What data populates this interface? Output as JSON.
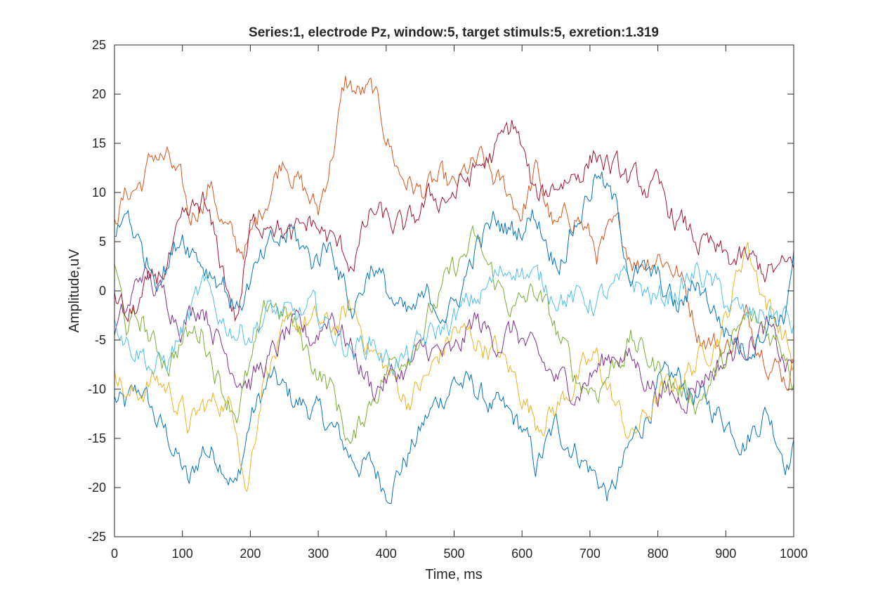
{
  "chart_data": {
    "type": "line",
    "title": "Series:1, electrode Pz, window:5, target stimuls:5, exretion:1.319",
    "xlabel": "Time, ms",
    "ylabel": "Amplitude,uV",
    "xlim": [
      0,
      1000
    ],
    "ylim": [
      -25,
      25
    ],
    "xticks": [
      0,
      100,
      200,
      300,
      400,
      500,
      600,
      700,
      800,
      900,
      1000
    ],
    "yticks": [
      -25,
      -20,
      -15,
      -10,
      -5,
      0,
      5,
      10,
      15,
      20,
      25
    ],
    "grid": false,
    "legend": "none",
    "series": [
      {
        "color": "#0072BD",
        "x": [
          0,
          15,
          40,
          60,
          80,
          100,
          110,
          130,
          160,
          180,
          200,
          230,
          260,
          290,
          320,
          350,
          380,
          400,
          430,
          460,
          500,
          530,
          560,
          580,
          600,
          620,
          650,
          680,
          710,
          730,
          760,
          800,
          830,
          860,
          900,
          930,
          960,
          990,
          1000
        ],
        "y": [
          -11,
          -12,
          -10,
          -13,
          -15,
          -18,
          -20,
          -16,
          -17,
          -20,
          -13,
          -9,
          -11,
          -12,
          -14,
          -17,
          -18,
          -20,
          -17,
          -13,
          -9,
          -10,
          -12,
          -13,
          -14,
          -18,
          -14,
          -16,
          -19,
          -21,
          -16,
          -10,
          -9,
          -11,
          -13,
          -15,
          -12,
          -17,
          -16
        ]
      },
      {
        "color": "#D95319",
        "x": [
          0,
          20,
          40,
          60,
          80,
          100,
          110,
          140,
          160,
          180,
          200,
          220,
          250,
          280,
          300,
          320,
          340,
          360,
          380,
          400,
          420,
          450,
          480,
          500,
          520,
          540,
          560,
          580,
          600,
          620,
          650,
          680,
          710,
          740,
          770,
          800,
          830,
          860,
          900,
          930,
          960,
          990,
          1000
        ],
        "y": [
          8,
          10,
          11,
          14,
          13,
          10,
          7,
          11,
          7,
          4,
          5,
          9,
          14,
          10,
          8,
          14,
          21,
          20,
          20,
          16,
          12,
          10,
          11,
          10,
          12,
          13,
          11,
          10,
          8,
          12,
          6,
          8,
          4,
          6,
          3,
          4,
          2,
          -4,
          -6,
          -3,
          -6,
          -9,
          -7
        ]
      },
      {
        "color": "#EDB120",
        "x": [
          0,
          20,
          40,
          60,
          80,
          100,
          110,
          130,
          160,
          180,
          195,
          220,
          250,
          280,
          320,
          350,
          380,
          400,
          430,
          460,
          500,
          530,
          560,
          590,
          620,
          650,
          680,
          710,
          740,
          760,
          800,
          830,
          860,
          900,
          930,
          960,
          990,
          1000
        ],
        "y": [
          -7,
          -11,
          -10,
          -9,
          -10,
          -12,
          -14,
          -12,
          -11,
          -13,
          -20,
          -8,
          -5,
          -3,
          -4,
          -2,
          -6,
          -8,
          -11,
          -9,
          -4,
          -5,
          -6,
          -9,
          -13,
          -12,
          -9,
          -7,
          -12,
          -15,
          -11,
          -9,
          -7,
          -3,
          5,
          -1,
          -5,
          -8
        ]
      },
      {
        "color": "#7E2F8E",
        "x": [
          0,
          20,
          40,
          60,
          80,
          100,
          130,
          160,
          180,
          200,
          230,
          260,
          290,
          320,
          350,
          380,
          400,
          430,
          460,
          500,
          530,
          560,
          590,
          620,
          650,
          680,
          710,
          740,
          760,
          800,
          830,
          860,
          900,
          930,
          960,
          990,
          1000
        ],
        "y": [
          -4,
          -2,
          2,
          0,
          -1,
          -3,
          -1,
          -6,
          -8,
          -9,
          -7,
          -4,
          -5,
          -2,
          -6,
          -10,
          -9,
          -8,
          -6,
          -7,
          -3,
          -5,
          -4,
          -7,
          -9,
          -10,
          -8,
          -6,
          -7,
          -10,
          -11,
          -9,
          -7,
          -5,
          -4,
          -8,
          -7
        ]
      },
      {
        "color": "#77AC30",
        "x": [
          0,
          20,
          40,
          60,
          80,
          100,
          130,
          160,
          180,
          200,
          230,
          260,
          290,
          320,
          350,
          370,
          400,
          430,
          460,
          500,
          530,
          560,
          590,
          620,
          650,
          680,
          710,
          740,
          760,
          800,
          830,
          860,
          900,
          930,
          960,
          990,
          1000
        ],
        "y": [
          2,
          -4,
          -3,
          -6,
          -7,
          -5,
          -4,
          -10,
          -12,
          -8,
          -1,
          -3,
          -7,
          -10,
          -16,
          -12,
          -8,
          -6,
          -3,
          2,
          5,
          1,
          -2,
          0,
          -4,
          -9,
          -10,
          -7,
          -5,
          -8,
          -10,
          -11,
          -7,
          -3,
          -4,
          -6,
          -9
        ]
      },
      {
        "color": "#4DBEEE",
        "x": [
          0,
          20,
          40,
          60,
          80,
          100,
          130,
          160,
          180,
          200,
          230,
          260,
          290,
          320,
          350,
          380,
          400,
          430,
          460,
          500,
          530,
          560,
          590,
          620,
          650,
          680,
          710,
          740,
          760,
          800,
          830,
          860,
          900,
          930,
          960,
          990,
          1000
        ],
        "y": [
          -2,
          -5,
          -6,
          -8,
          -7,
          -4,
          0,
          -3,
          -4,
          -4,
          -2,
          -3,
          -2,
          -4,
          -6,
          -5,
          -7,
          -7,
          -5,
          -3,
          -1,
          1,
          3,
          1,
          0,
          -1,
          -1,
          0,
          1,
          -1,
          0,
          2,
          -1,
          -3,
          -2,
          -3,
          -4
        ]
      },
      {
        "color": "#A2142F",
        "x": [
          0,
          20,
          40,
          60,
          80,
          100,
          130,
          160,
          180,
          200,
          230,
          260,
          290,
          320,
          350,
          380,
          400,
          430,
          460,
          500,
          530,
          560,
          590,
          620,
          650,
          680,
          710,
          740,
          760,
          800,
          830,
          860,
          900,
          930,
          960,
          990,
          1000
        ],
        "y": [
          0,
          -3,
          -1,
          1,
          3,
          6,
          9,
          2,
          -3,
          6,
          8,
          5,
          7,
          5,
          3,
          8,
          7,
          6,
          9,
          10,
          12,
          14,
          17,
          9,
          11,
          12,
          14,
          12,
          11,
          10,
          7,
          5,
          3,
          3,
          2,
          2,
          3
        ]
      },
      {
        "color": "#0072BD",
        "x": [
          0,
          20,
          40,
          60,
          80,
          100,
          130,
          160,
          180,
          200,
          230,
          260,
          290,
          320,
          350,
          380,
          400,
          430,
          460,
          500,
          530,
          560,
          590,
          620,
          650,
          680,
          710,
          740,
          760,
          800,
          830,
          860,
          900,
          930,
          960,
          990,
          1000
        ],
        "y": [
          5,
          8,
          4,
          2,
          3,
          6,
          3,
          1,
          -2,
          1,
          4,
          6,
          3,
          5,
          -2,
          3,
          0,
          -3,
          -1,
          -2,
          4,
          7,
          6,
          8,
          3,
          7,
          12,
          8,
          2,
          1,
          -2,
          1,
          -4,
          -6,
          -3,
          -2,
          5
        ]
      }
    ]
  }
}
